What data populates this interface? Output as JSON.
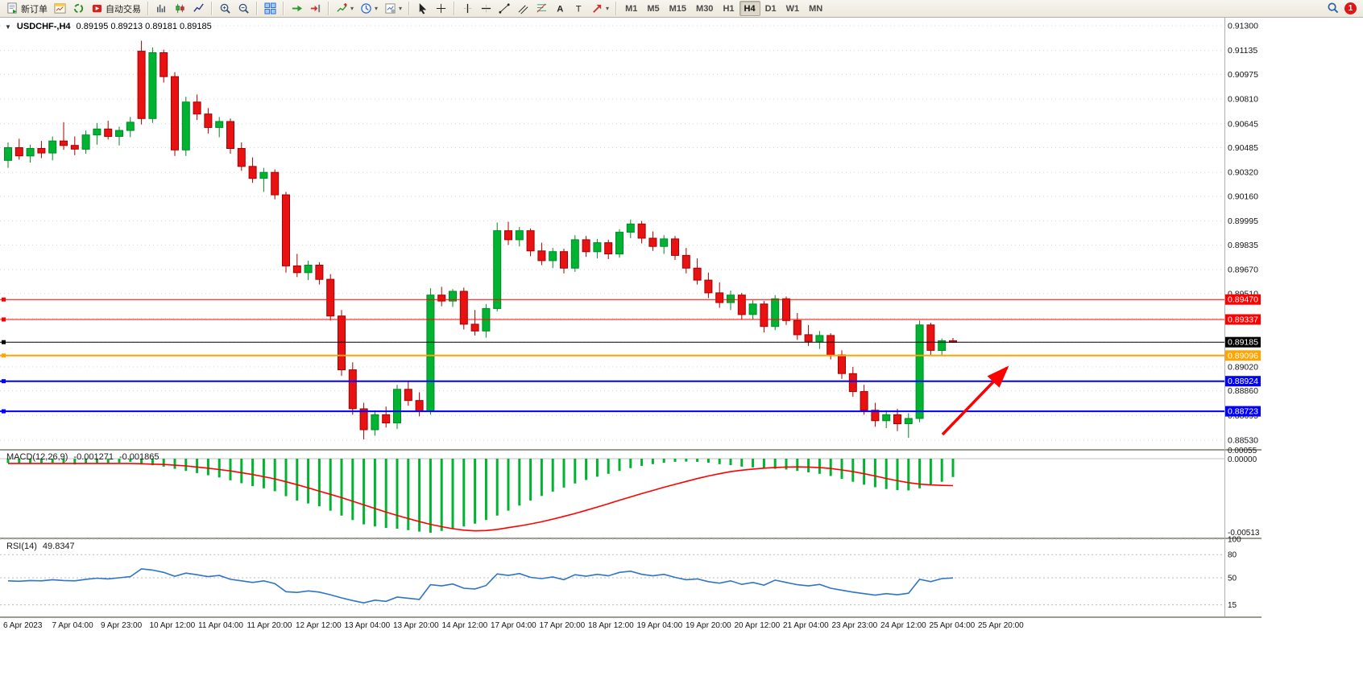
{
  "window": {
    "collapse_icon": "▼",
    "symbol_header": "USDCHF-,H4",
    "ohlc_text": "0.89195 0.89213 0.89181 0.89185"
  },
  "toolbar": {
    "new_order_label": "新订单",
    "autotrading_label": "自动交易",
    "timeframe_buttons": [
      "M1",
      "M5",
      "M15",
      "M30",
      "H1",
      "H4",
      "D1",
      "W1",
      "MN"
    ],
    "active_timeframe": "H4",
    "notification_badge": "1",
    "left_icons": [
      "new-order-icon",
      "chart-window-icon",
      "cycle-icon",
      "autotrading-icon"
    ],
    "chart_icons": [
      "bar-chart-icon",
      "candlestick-chart-icon",
      "line-chart-icon",
      "zoom-in-icon",
      "zoom-out-icon",
      "tile-windows-icon",
      "auto-scroll-icon",
      "chart-shift-icon",
      "indicators-icon",
      "periods-icon",
      "templates-icon"
    ],
    "tool_icons": [
      "cursor-icon",
      "crosshair-icon",
      "vertical-line-icon",
      "horizontal-line-icon",
      "trendline-icon",
      "channel-icon",
      "fibonacci-icon",
      "text-icon",
      "label-icon",
      "arrows-icon"
    ],
    "search_icon": "search-icon"
  },
  "chart_data": {
    "type": "candlestick",
    "symbol": "USDCHF-",
    "timeframe": "H4",
    "current_ohlc": {
      "open": "0.89195",
      "high": "0.89213",
      "low": "0.89181",
      "close": "0.89185"
    },
    "up_color": "#00B432",
    "down_color": "#E81212",
    "price_axis_labels": [
      "0.91300",
      "0.91135",
      "0.90975",
      "0.90810",
      "0.90645",
      "0.90485",
      "0.90320",
      "0.90160",
      "0.89995",
      "0.89835",
      "0.89670",
      "0.89510",
      "0.89345",
      "0.89185",
      "0.89020",
      "0.88860",
      "0.88695",
      "0.88530"
    ],
    "price_range": {
      "max": 0.913,
      "min": 0.8853
    },
    "time_labels": [
      "6 Apr 2023",
      "7 Apr 04:00",
      "9 Apr 23:00",
      "10 Apr 12:00",
      "11 Apr 04:00",
      "11 Apr 20:00",
      "12 Apr 12:00",
      "13 Apr 04:00",
      "13 Apr 20:00",
      "14 Apr 12:00",
      "17 Apr 04:00",
      "17 Apr 20:00",
      "18 Apr 12:00",
      "19 Apr 04:00",
      "19 Apr 20:00",
      "20 Apr 12:00",
      "21 Apr 04:00",
      "23 Apr 23:00",
      "24 Apr 12:00",
      "25 Apr 04:00",
      "25 Apr 20:00"
    ],
    "hlines": [
      {
        "price": 0.8947,
        "label": "0.89470",
        "color": "#FF0000",
        "width": 1
      },
      {
        "price": 0.89337,
        "label": "0.89337",
        "color": "#FF0000",
        "width": 1
      },
      {
        "price": 0.89185,
        "label": "0.89185",
        "color": "#000000",
        "width": 1
      },
      {
        "price": 0.89096,
        "label": "0.89096",
        "color": "#FFA500",
        "width": 2
      },
      {
        "price": 0.88924,
        "label": "0.88924",
        "color": "#0000FF",
        "width": 2
      },
      {
        "price": 0.88723,
        "label": "0.88723",
        "color": "#0000FF",
        "width": 2
      }
    ],
    "annotation_arrow": {
      "color": "#FF0000",
      "direction": "up-right"
    },
    "candles_ohlc": [
      [
        0.904,
        0.9052,
        0.9035,
        0.90485
      ],
      [
        0.90485,
        0.90545,
        0.90405,
        0.9043
      ],
      [
        0.9043,
        0.90505,
        0.90385,
        0.9048
      ],
      [
        0.9048,
        0.9053,
        0.90415,
        0.9045
      ],
      [
        0.9045,
        0.9056,
        0.904,
        0.9053
      ],
      [
        0.9053,
        0.90655,
        0.9047,
        0.905
      ],
      [
        0.905,
        0.9056,
        0.90435,
        0.90475
      ],
      [
        0.90475,
        0.906,
        0.90445,
        0.9057
      ],
      [
        0.9057,
        0.9065,
        0.90505,
        0.9061
      ],
      [
        0.9061,
        0.90665,
        0.9054,
        0.9056
      ],
      [
        0.9056,
        0.90625,
        0.905,
        0.906
      ],
      [
        0.906,
        0.9069,
        0.90555,
        0.90655
      ],
      [
        0.9113,
        0.912,
        0.9064,
        0.9068
      ],
      [
        0.9068,
        0.91155,
        0.9065,
        0.9112
      ],
      [
        0.9112,
        0.9114,
        0.9092,
        0.9096
      ],
      [
        0.9096,
        0.9099,
        0.9043,
        0.9047
      ],
      [
        0.9047,
        0.90825,
        0.9043,
        0.9079
      ],
      [
        0.9079,
        0.9084,
        0.9067,
        0.9071
      ],
      [
        0.9071,
        0.9075,
        0.9058,
        0.9062
      ],
      [
        0.9062,
        0.9069,
        0.90555,
        0.9066
      ],
      [
        0.9066,
        0.9068,
        0.90445,
        0.9048
      ],
      [
        0.9048,
        0.9052,
        0.9033,
        0.9036
      ],
      [
        0.9036,
        0.9042,
        0.9025,
        0.9028
      ],
      [
        0.9028,
        0.9035,
        0.9019,
        0.9032
      ],
      [
        0.9032,
        0.9034,
        0.9014,
        0.9017
      ],
      [
        0.9017,
        0.9019,
        0.8965,
        0.89695
      ],
      [
        0.89695,
        0.89775,
        0.8962,
        0.8965
      ],
      [
        0.8965,
        0.8973,
        0.896,
        0.897
      ],
      [
        0.897,
        0.8972,
        0.8957,
        0.89605
      ],
      [
        0.89605,
        0.8964,
        0.8933,
        0.8936
      ],
      [
        0.8936,
        0.894,
        0.8896,
        0.89
      ],
      [
        0.89,
        0.8905,
        0.887,
        0.8874
      ],
      [
        0.8874,
        0.8878,
        0.88535,
        0.886
      ],
      [
        0.886,
        0.8873,
        0.8856,
        0.887
      ],
      [
        0.887,
        0.88755,
        0.88615,
        0.88645
      ],
      [
        0.88645,
        0.889,
        0.88605,
        0.8887
      ],
      [
        0.8887,
        0.8892,
        0.8876,
        0.88795
      ],
      [
        0.88795,
        0.8885,
        0.8869,
        0.88725
      ],
      [
        0.88725,
        0.89545,
        0.887,
        0.895
      ],
      [
        0.895,
        0.89555,
        0.89425,
        0.8946
      ],
      [
        0.8946,
        0.8954,
        0.8942,
        0.89525
      ],
      [
        0.89525,
        0.8955,
        0.8927,
        0.89305
      ],
      [
        0.89305,
        0.894,
        0.8923,
        0.8926
      ],
      [
        0.8926,
        0.8944,
        0.89215,
        0.8941
      ],
      [
        0.8941,
        0.89985,
        0.8939,
        0.8993
      ],
      [
        0.8993,
        0.8999,
        0.89835,
        0.8987
      ],
      [
        0.8987,
        0.89955,
        0.89825,
        0.8993
      ],
      [
        0.8993,
        0.89945,
        0.8976,
        0.89795
      ],
      [
        0.89795,
        0.8985,
        0.897,
        0.8973
      ],
      [
        0.8973,
        0.89815,
        0.8968,
        0.8979
      ],
      [
        0.8979,
        0.8981,
        0.89645,
        0.8968
      ],
      [
        0.8968,
        0.899,
        0.89655,
        0.8987
      ],
      [
        0.8987,
        0.89895,
        0.89755,
        0.8979
      ],
      [
        0.8979,
        0.89875,
        0.89745,
        0.8985
      ],
      [
        0.8985,
        0.8987,
        0.8974,
        0.89775
      ],
      [
        0.89775,
        0.8994,
        0.8975,
        0.8992
      ],
      [
        0.8992,
        0.90005,
        0.8988,
        0.89975
      ],
      [
        0.89975,
        0.89995,
        0.89845,
        0.8988
      ],
      [
        0.8988,
        0.89925,
        0.89795,
        0.89825
      ],
      [
        0.89825,
        0.899,
        0.89775,
        0.89875
      ],
      [
        0.89875,
        0.89895,
        0.89735,
        0.89765
      ],
      [
        0.89765,
        0.89815,
        0.89645,
        0.8968
      ],
      [
        0.8968,
        0.89745,
        0.8957,
        0.896
      ],
      [
        0.896,
        0.8965,
        0.8948,
        0.89515
      ],
      [
        0.89515,
        0.89585,
        0.89415,
        0.8945
      ],
      [
        0.8945,
        0.8953,
        0.894,
        0.895
      ],
      [
        0.895,
        0.89515,
        0.89335,
        0.8937
      ],
      [
        0.8937,
        0.89465,
        0.8934,
        0.8944
      ],
      [
        0.8944,
        0.8946,
        0.8925,
        0.8929
      ],
      [
        0.8929,
        0.895,
        0.89265,
        0.89475
      ],
      [
        0.89475,
        0.8949,
        0.893,
        0.8933
      ],
      [
        0.8933,
        0.8938,
        0.892,
        0.89235
      ],
      [
        0.89235,
        0.893,
        0.8916,
        0.8919
      ],
      [
        0.8919,
        0.8926,
        0.8914,
        0.8923
      ],
      [
        0.8923,
        0.89245,
        0.8907,
        0.891
      ],
      [
        0.891,
        0.8913,
        0.8894,
        0.88975
      ],
      [
        0.88975,
        0.8902,
        0.8882,
        0.88855
      ],
      [
        0.88855,
        0.889,
        0.887,
        0.8873
      ],
      [
        0.8873,
        0.8878,
        0.8862,
        0.8866
      ],
      [
        0.8866,
        0.8873,
        0.8861,
        0.887
      ],
      [
        0.887,
        0.8874,
        0.8859,
        0.8864
      ],
      [
        0.8864,
        0.8871,
        0.88545,
        0.88675
      ],
      [
        0.88675,
        0.8933,
        0.8865,
        0.893
      ],
      [
        0.893,
        0.89315,
        0.891,
        0.8913
      ],
      [
        0.8913,
        0.8921,
        0.89095,
        0.89195
      ],
      [
        0.89195,
        0.89213,
        0.89181,
        0.89185
      ]
    ]
  },
  "macd": {
    "label": "MACD(12,26,9)",
    "main_value": "-0.001271",
    "signal_value": "-0.001865",
    "axis_labels": [
      "0.00055",
      "0.00000",
      "-0.00513"
    ],
    "range": {
      "max": 0.00055,
      "min": -0.00513
    },
    "hist_color": "#00B432",
    "signal_color": "#FF0000",
    "histogram": [
      -0.0003,
      -0.00035,
      -0.00032,
      -0.0003,
      -0.00028,
      -0.00035,
      -0.0004,
      -0.00035,
      -0.0003,
      -0.00032,
      -0.00028,
      -0.00022,
      -0.0004,
      -0.00045,
      -0.00055,
      -0.0007,
      -0.00085,
      -0.001,
      -0.00115,
      -0.0013,
      -0.0015,
      -0.0017,
      -0.0019,
      -0.00205,
      -0.00225,
      -0.0026,
      -0.0029,
      -0.0031,
      -0.0033,
      -0.0036,
      -0.00395,
      -0.00425,
      -0.00455,
      -0.0047,
      -0.0048,
      -0.00485,
      -0.00495,
      -0.00505,
      -0.00513,
      -0.005,
      -0.00488,
      -0.0047,
      -0.0045,
      -0.00425,
      -0.00395,
      -0.0036,
      -0.00325,
      -0.0029,
      -0.00258,
      -0.00228,
      -0.002,
      -0.00172,
      -0.00148,
      -0.00125,
      -0.00105,
      -0.00085,
      -0.00066,
      -0.0005,
      -0.00038,
      -0.00028,
      -0.00022,
      -0.0002,
      -0.00022,
      -0.00028,
      -0.00038,
      -0.00045,
      -0.00055,
      -0.0006,
      -0.00068,
      -0.0007,
      -0.00075,
      -0.00085,
      -0.00095,
      -0.00105,
      -0.0012,
      -0.0014,
      -0.0016,
      -0.0018,
      -0.00198,
      -0.0021,
      -0.00218,
      -0.0022,
      -0.00205,
      -0.00185,
      -0.0016,
      -0.00127
    ],
    "signal": [
      -0.00033,
      -0.00033,
      -0.00033,
      -0.00033,
      -0.00033,
      -0.00033,
      -0.00033,
      -0.00033,
      -0.00033,
      -0.00033,
      -0.00033,
      -0.00033,
      -0.00035,
      -0.00038,
      -0.0004,
      -0.00045,
      -0.0005,
      -0.00058,
      -0.00066,
      -0.00075,
      -0.00085,
      -0.00097,
      -0.0011,
      -0.00125,
      -0.0014,
      -0.0016,
      -0.0018,
      -0.00202,
      -0.00225,
      -0.00247,
      -0.0027,
      -0.00295,
      -0.0032,
      -0.00345,
      -0.0037,
      -0.00393,
      -0.00415,
      -0.00436,
      -0.00455,
      -0.00471,
      -0.00485,
      -0.00495,
      -0.005,
      -0.00498,
      -0.0049,
      -0.00478,
      -0.00466,
      -0.00452,
      -0.00437,
      -0.00419,
      -0.004,
      -0.0038,
      -0.00358,
      -0.00335,
      -0.00312,
      -0.00288,
      -0.00265,
      -0.00242,
      -0.0022,
      -0.00198,
      -0.00178,
      -0.00158,
      -0.00138,
      -0.0012,
      -0.00104,
      -0.0009,
      -0.0008,
      -0.00072,
      -0.00066,
      -0.00061,
      -0.00058,
      -0.00057,
      -0.00058,
      -0.00062,
      -0.00068,
      -0.00078,
      -0.0009,
      -0.00104,
      -0.0012,
      -0.00137,
      -0.00153,
      -0.00166,
      -0.00176,
      -0.00182,
      -0.00185,
      -0.00187
    ]
  },
  "rsi": {
    "label": "RSI(14)",
    "value": "49.8347",
    "levels": [
      "100",
      "80",
      "50",
      "15"
    ],
    "line_color": "#2E75C8",
    "values": [
      46,
      45.5,
      46.5,
      46,
      47.5,
      46.5,
      46,
      48,
      49.5,
      48.5,
      50,
      51.5,
      61.5,
      60,
      57,
      52,
      56,
      54,
      51.5,
      53,
      48,
      46,
      44,
      46,
      42.5,
      32,
      31,
      33,
      31.5,
      28,
      24,
      20.5,
      17.5,
      21,
      19.5,
      25,
      23.5,
      22,
      41,
      39.5,
      42,
      36.5,
      35.5,
      40,
      55,
      53,
      55.5,
      50.5,
      49,
      51,
      47.5,
      54,
      52,
      54.5,
      52.5,
      57,
      58.5,
      54.5,
      52.5,
      54.5,
      50.5,
      47.5,
      48.5,
      45,
      43,
      46,
      41.5,
      44,
      40.5,
      47,
      44,
      41,
      39.5,
      41.5,
      36.5,
      34,
      31.5,
      29.5,
      27.5,
      29.5,
      28,
      30,
      48,
      45,
      49,
      49.8347
    ]
  }
}
